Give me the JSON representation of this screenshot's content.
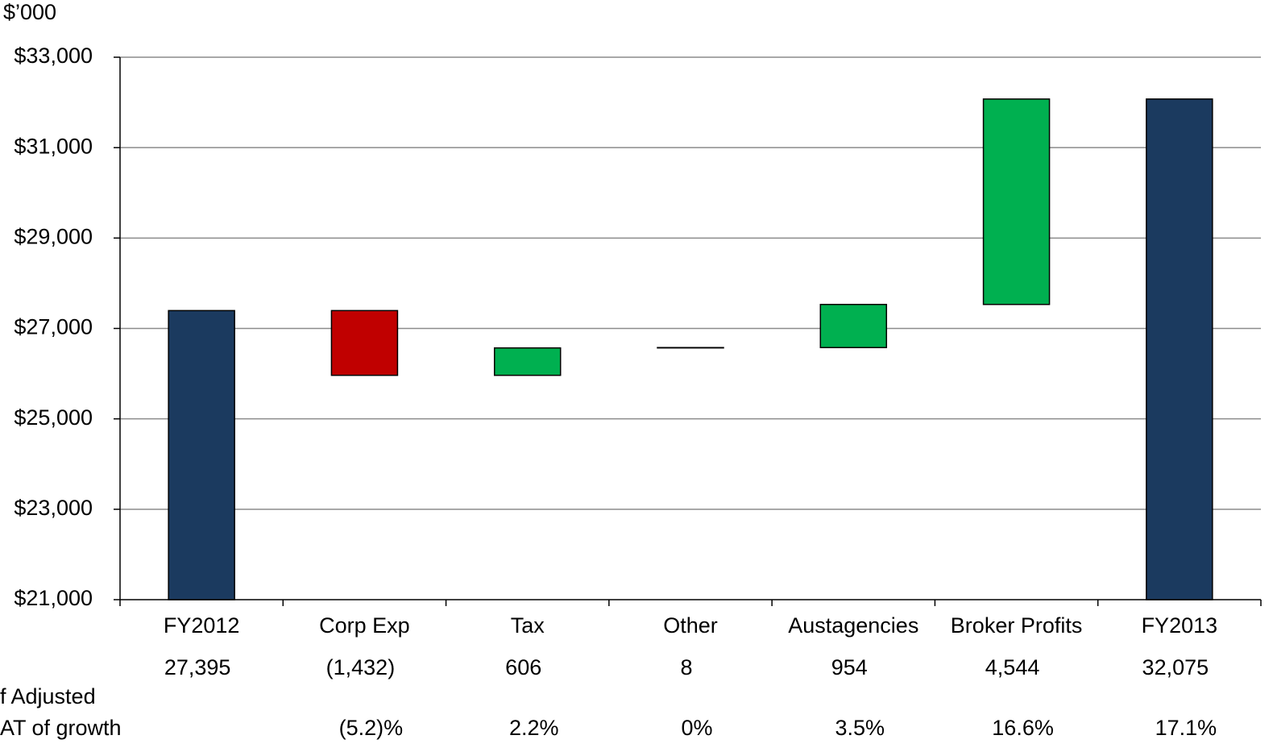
{
  "chart_data": {
    "type": "waterfall",
    "unit_label": "$’000",
    "categories": [
      "FY2012",
      "Corp Exp",
      "Tax",
      "Other",
      "Austagencies",
      "Broker Profits",
      "FY2013"
    ],
    "values": [
      27395,
      -1432,
      606,
      8,
      954,
      4544,
      32075
    ],
    "value_labels": [
      "27,395",
      "(1,432)",
      "606",
      "8",
      "954",
      "4,544",
      "32,075"
    ],
    "measures": [
      "total",
      "relative",
      "relative",
      "relative",
      "relative",
      "relative",
      "total"
    ],
    "colors": {
      "total": "#1b3a5f",
      "increase": "#00b050",
      "decrease": "#c00000"
    },
    "ylim": [
      21000,
      33000
    ],
    "yticks": [
      {
        "value": 21000,
        "label": "$21,000"
      },
      {
        "value": 23000,
        "label": "$23,000"
      },
      {
        "value": 25000,
        "label": "$25,000"
      },
      {
        "value": 27000,
        "label": "$27,000"
      },
      {
        "value": 29000,
        "label": "$29,000"
      },
      {
        "value": 31000,
        "label": "$31,000"
      },
      {
        "value": 33000,
        "label": "$33,000"
      }
    ],
    "grid": true,
    "growth": {
      "label": [
        "f Adjusted",
        "AT of growth"
      ],
      "values": [
        null,
        -5.2,
        2.2,
        0,
        3.5,
        16.6,
        17.1
      ],
      "value_labels": [
        null,
        "(5.2)%",
        "2.2%",
        "0%",
        "3.5%",
        "16.6%",
        "17.1%"
      ]
    }
  }
}
